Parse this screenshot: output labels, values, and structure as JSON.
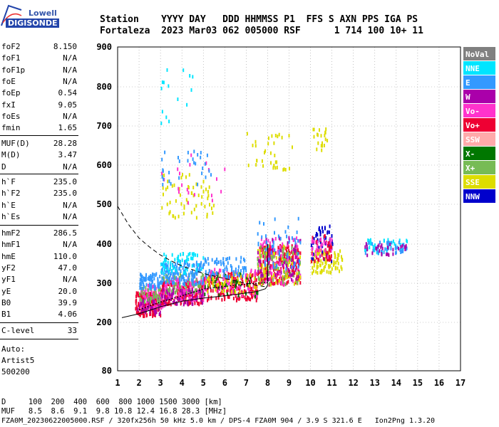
{
  "logo": {
    "line1": "Lowell",
    "line2": "DIGISONDE"
  },
  "header": {
    "line1": "Station    YYYY DAY   DDD HHMMSS P1  FFS S AXN PPS IGA PS",
    "line2": "Fortaleza  2023 Mar03 062 005000 RSF      1 714 100 10+ 11"
  },
  "params_group1": [
    {
      "label": "foF2",
      "value": "8.150"
    },
    {
      "label": "foF1",
      "value": "N/A"
    },
    {
      "label": "foF1p",
      "value": "N/A"
    },
    {
      "label": "foE",
      "value": "N/A"
    },
    {
      "label": "foEp",
      "value": "0.54"
    },
    {
      "label": "fxI",
      "value": "9.05"
    },
    {
      "label": "foEs",
      "value": "N/A"
    },
    {
      "label": "fmin",
      "value": "1.65"
    }
  ],
  "params_group2": [
    {
      "label": "MUF(D)",
      "value": "28.28"
    },
    {
      "label": "M(D)",
      "value": "3.47"
    },
    {
      "label": "D",
      "value": "N/A"
    }
  ],
  "params_group3": [
    {
      "label": "h`F",
      "value": "235.0"
    },
    {
      "label": "h`F2",
      "value": "235.0"
    },
    {
      "label": "h`E",
      "value": "N/A"
    },
    {
      "label": "h`Es",
      "value": "N/A"
    }
  ],
  "params_group4": [
    {
      "label": "hmF2",
      "value": "286.5"
    },
    {
      "label": "hmF1",
      "value": "N/A"
    },
    {
      "label": "hmE",
      "value": "110.0"
    },
    {
      "label": "yF2",
      "value": "47.0"
    },
    {
      "label": "yF1",
      "value": "N/A"
    },
    {
      "label": "yE",
      "value": "20.0"
    },
    {
      "label": "B0",
      "value": "39.9"
    },
    {
      "label": "B1",
      "value": "4.06"
    }
  ],
  "params_group5": [
    {
      "label": "C-level",
      "value": "33"
    }
  ],
  "auto": {
    "line1": "Auto:",
    "line2": "Artist5",
    "line3": "500200"
  },
  "footer": {
    "d_row": "D     100  200  400  600  800 1000 1500 3000 [km]",
    "muf_row": "MUF   8.5  8.6  9.1  9.8 10.8 12.4 16.8 28.3 [MHz]",
    "file_row": "FZA0M_20230622005000.RSF / 320fx256h 50 kHz 5.0 km / DPS-4 FZA0M 904 / 3.9 S 321.6 E   Ion2Png 1.3.20"
  },
  "legend": [
    {
      "label": "NoVal",
      "color": "#808080"
    },
    {
      "label": "NNE",
      "color": "#00e5ff"
    },
    {
      "label": "E",
      "color": "#3399ff"
    },
    {
      "label": "W",
      "color": "#aa00aa"
    },
    {
      "label": "Vo-",
      "color": "#ff33cc"
    },
    {
      "label": "Vo+",
      "color": "#ee0033"
    },
    {
      "label": "SSW",
      "color": "#ffaaaa"
    },
    {
      "label": "X-",
      "color": "#007700"
    },
    {
      "label": "X+",
      "color": "#77bb55"
    },
    {
      "label": "SSE",
      "color": "#dddd00"
    },
    {
      "label": "NNW",
      "color": "#0000cc"
    }
  ],
  "chart_data": {
    "type": "scatter",
    "xlim": [
      1,
      17
    ],
    "ylim": [
      80,
      900
    ],
    "x_ticks": [
      1,
      2,
      3,
      4,
      5,
      6,
      7,
      8,
      9,
      10,
      11,
      12,
      13,
      14,
      15,
      16,
      17
    ],
    "y_ticks": [
      80,
      200,
      300,
      400,
      500,
      600,
      700,
      800,
      900
    ],
    "grid": true,
    "legend_position": "right",
    "clusters": [
      {
        "x": [
          1.8,
          3.0
        ],
        "y": [
          220,
          280
        ],
        "color": "#ee0033",
        "n": 180
      },
      {
        "x": [
          2.0,
          3.2
        ],
        "y": [
          240,
          300
        ],
        "color": "#ff33cc",
        "n": 90
      },
      {
        "x": [
          1.9,
          3.0
        ],
        "y": [
          225,
          265
        ],
        "color": "#aa00aa",
        "n": 50
      },
      {
        "x": [
          2.0,
          3.0
        ],
        "y": [
          255,
          300
        ],
        "color": "#77bb55",
        "n": 40
      },
      {
        "x": [
          2.0,
          3.0
        ],
        "y": [
          290,
          330
        ],
        "color": "#3399ff",
        "n": 70
      },
      {
        "x": [
          3.0,
          5.0
        ],
        "y": [
          250,
          310
        ],
        "color": "#ee0033",
        "n": 220
      },
      {
        "x": [
          3.0,
          5.0
        ],
        "y": [
          260,
          320
        ],
        "color": "#ff33cc",
        "n": 110
      },
      {
        "x": [
          3.0,
          5.0
        ],
        "y": [
          280,
          330
        ],
        "color": "#77bb55",
        "n": 70
      },
      {
        "x": [
          3.0,
          5.0
        ],
        "y": [
          250,
          290
        ],
        "color": "#aa00aa",
        "n": 60
      },
      {
        "x": [
          3.0,
          5.0
        ],
        "y": [
          300,
          360
        ],
        "color": "#3399ff",
        "n": 140
      },
      {
        "x": [
          3.0,
          5.0
        ],
        "y": [
          330,
          380
        ],
        "color": "#00e5ff",
        "n": 60
      },
      {
        "x": [
          5.0,
          7.5
        ],
        "y": [
          260,
          330
        ],
        "color": "#ee0033",
        "n": 200
      },
      {
        "x": [
          5.0,
          7.5
        ],
        "y": [
          270,
          340
        ],
        "color": "#ff33cc",
        "n": 90
      },
      {
        "x": [
          5.0,
          7.5
        ],
        "y": [
          270,
          330
        ],
        "color": "#007700",
        "n": 40
      },
      {
        "x": [
          5.0,
          7.5
        ],
        "y": [
          280,
          330
        ],
        "color": "#dddd00",
        "n": 50
      },
      {
        "x": [
          5.0,
          7.0
        ],
        "y": [
          320,
          370
        ],
        "color": "#3399ff",
        "n": 70
      },
      {
        "x": [
          7.5,
          9.5
        ],
        "y": [
          300,
          400
        ],
        "color": "#ee0033",
        "n": 240
      },
      {
        "x": [
          7.5,
          9.5
        ],
        "y": [
          300,
          420
        ],
        "color": "#ff33cc",
        "n": 110
      },
      {
        "x": [
          7.5,
          9.5
        ],
        "y": [
          300,
          400
        ],
        "color": "#dddd00",
        "n": 80
      },
      {
        "x": [
          7.5,
          9.5
        ],
        "y": [
          300,
          400
        ],
        "color": "#77bb55",
        "n": 70
      },
      {
        "x": [
          7.5,
          9.5
        ],
        "y": [
          310,
          420
        ],
        "color": "#aa00aa",
        "n": 60
      },
      {
        "x": [
          7.5,
          9.5
        ],
        "y": [
          340,
          470
        ],
        "color": "#3399ff",
        "n": 50
      },
      {
        "x": [
          10.0,
          11.5
        ],
        "y": [
          330,
          390
        ],
        "color": "#dddd00",
        "n": 90
      },
      {
        "x": [
          10.0,
          11.0
        ],
        "y": [
          360,
          450
        ],
        "color": "#0000cc",
        "n": 50
      },
      {
        "x": [
          10.0,
          11.0
        ],
        "y": [
          360,
          430
        ],
        "color": "#ee0033",
        "n": 40
      },
      {
        "x": [
          10.0,
          11.0
        ],
        "y": [
          370,
          420
        ],
        "color": "#ff33cc",
        "n": 30
      },
      {
        "x": [
          12.5,
          14.5
        ],
        "y": [
          380,
          415
        ],
        "color": "#00e5ff",
        "n": 40
      },
      {
        "x": [
          12.5,
          14.5
        ],
        "y": [
          380,
          410
        ],
        "color": "#3399ff",
        "n": 40
      },
      {
        "x": [
          12.5,
          14.5
        ],
        "y": [
          375,
          405
        ],
        "color": "#aa00aa",
        "n": 30
      },
      {
        "x": [
          3.0,
          5.5
        ],
        "y": [
          470,
          580
        ],
        "color": "#dddd00",
        "n": 60
      },
      {
        "x": [
          3.0,
          6.0
        ],
        "y": [
          500,
          640
        ],
        "color": "#ff33cc",
        "n": 20
      },
      {
        "x": [
          3.0,
          5.5
        ],
        "y": [
          540,
          640
        ],
        "color": "#3399ff",
        "n": 30
      },
      {
        "x": [
          7.0,
          9.2
        ],
        "y": [
          590,
          690
        ],
        "color": "#dddd00",
        "n": 35
      },
      {
        "x": [
          10.0,
          10.8
        ],
        "y": [
          640,
          700
        ],
        "color": "#dddd00",
        "n": 20
      },
      {
        "x": [
          3.0,
          4.5
        ],
        "y": [
          700,
          860
        ],
        "color": "#00e5ff",
        "n": 15
      }
    ],
    "curves": [
      {
        "style": "dashed",
        "x": [
          1.0,
          1.5,
          2.0,
          2.5,
          3.0,
          3.5,
          4.0,
          5.0,
          6.0,
          7.0,
          7.5,
          8.0
        ],
        "y": [
          495,
          450,
          415,
          392,
          372,
          357,
          344,
          325,
          312,
          300,
          295,
          290
        ]
      },
      {
        "style": "solid",
        "x": [
          1.2,
          2.0,
          3.0,
          4.0,
          5.0,
          6.0,
          7.0,
          7.5,
          7.9,
          8.0,
          8.0
        ],
        "y": [
          212,
          222,
          240,
          254,
          262,
          268,
          275,
          279,
          286,
          295,
          400
        ]
      },
      {
        "style": "dotted",
        "x": [
          2.0,
          3.0,
          4.0,
          5.0,
          6.0,
          7.0,
          8.0
        ],
        "y": [
          232,
          252,
          268,
          285,
          292,
          298,
          302
        ]
      }
    ]
  }
}
